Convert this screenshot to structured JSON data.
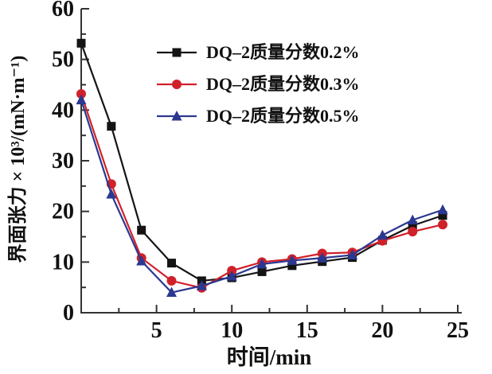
{
  "chart_data": {
    "type": "line",
    "title": "",
    "xlabel": "时间/min",
    "ylabel": "界面张力 × 10³/(mN·m⁻¹)",
    "xlim": [
      0,
      25
    ],
    "ylim": [
      0,
      60
    ],
    "x_major_ticks": [
      5,
      10,
      15,
      20,
      25
    ],
    "x_minor_ticks": [
      2.5,
      7.5,
      12.5,
      17.5,
      22.5
    ],
    "y_major_ticks": [
      0,
      10,
      20,
      30,
      40,
      50,
      60
    ],
    "y_minor_ticks": [
      5,
      15,
      25,
      35,
      45,
      55
    ],
    "grid": false,
    "legend_position": "upper-center",
    "axis_color": "#333333",
    "x": [
      0,
      2,
      4,
      6,
      8,
      10,
      12,
      14,
      16,
      18,
      20,
      22,
      24
    ],
    "series": [
      {
        "name": "DQ–2质量分数0.2%",
        "color": "#141414",
        "marker": "square",
        "values": [
          53.2,
          36.8,
          16.3,
          9.8,
          6.3,
          6.9,
          8.1,
          9.3,
          10.1,
          10.9,
          14.3,
          17.2,
          19.2
        ]
      },
      {
        "name": "DQ–2质量分数0.3%",
        "color": "#d0212a",
        "marker": "circle",
        "values": [
          43.2,
          25.4,
          10.8,
          6.3,
          4.9,
          8.3,
          10.0,
          10.6,
          11.7,
          11.9,
          14.2,
          16.0,
          17.4
        ]
      },
      {
        "name": "DQ–2质量分数0.5%",
        "color": "#2b3890",
        "marker": "triangle",
        "values": [
          42.0,
          23.4,
          10.2,
          4.0,
          5.3,
          7.2,
          9.6,
          10.3,
          10.8,
          11.4,
          15.3,
          18.3,
          20.3
        ]
      }
    ]
  }
}
